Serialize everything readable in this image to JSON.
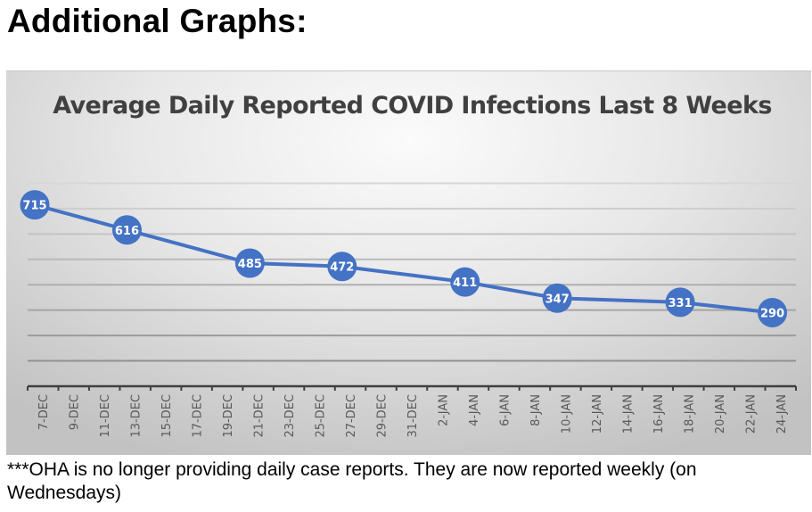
{
  "page": {
    "heading": "Additional Graphs:",
    "footnote": "***OHA is no longer providing daily case reports.  They are now reported weekly (on Wednesdays)"
  },
  "colors": {
    "series": "#4472c4",
    "marker_label": "#ffffff",
    "title": "#404040",
    "axis": "#404040",
    "grid": "#b4b4b4"
  },
  "chart_data": {
    "type": "line",
    "title": "Average Daily Reported COVID Infections Last 8 Weeks",
    "xlabel": "",
    "ylabel": "",
    "ylim": [
      0,
      900
    ],
    "grid": true,
    "legend": "none",
    "categories": [
      "7-DEC",
      "9-DEC",
      "11-DEC",
      "13-DEC",
      "15-DEC",
      "17-DEC",
      "19-DEC",
      "21-DEC",
      "23-DEC",
      "25-DEC",
      "27-DEC",
      "29-DEC",
      "31-DEC",
      "2-JAN",
      "4-JAN",
      "6-JAN",
      "8-JAN",
      "10-JAN",
      "12-JAN",
      "14-JAN",
      "16-JAN",
      "18-JAN",
      "20-JAN",
      "22-JAN",
      "24-JAN"
    ],
    "series": [
      {
        "name": "Average Daily Reported COVID Infections",
        "points": [
          {
            "x": "7-DEC",
            "y": 715,
            "label": "715"
          },
          {
            "x": "13-DEC",
            "y": 616,
            "label": "616"
          },
          {
            "x": "21-DEC",
            "y": 485,
            "label": "485"
          },
          {
            "x": "27-DEC",
            "y": 472,
            "label": "472"
          },
          {
            "x": "4-JAN",
            "y": 411,
            "label": "411"
          },
          {
            "x": "10-JAN",
            "y": 347,
            "label": "347"
          },
          {
            "x": "18-JAN",
            "y": 331,
            "label": "331"
          },
          {
            "x": "24-JAN",
            "y": 290,
            "label": "290"
          }
        ]
      }
    ]
  }
}
